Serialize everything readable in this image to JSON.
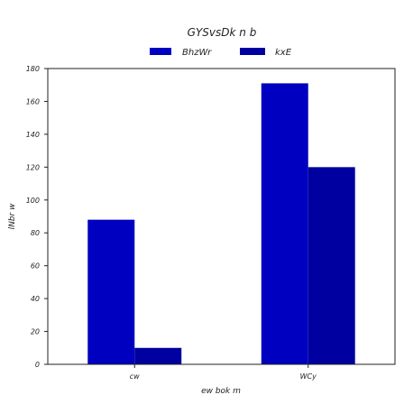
{
  "chart_data": {
    "type": "bar",
    "title": "GYSvsDk n b",
    "xlabel": "ew bok m",
    "ylabel": "lNbr w",
    "categories": [
      "cw",
      "WCy"
    ],
    "series": [
      {
        "name": "BhzWr",
        "values": [
          88,
          171
        ],
        "color": "#0000c0"
      },
      {
        "name": "kxE",
        "values": [
          10,
          120
        ],
        "color": "#0000a0"
      }
    ],
    "ylim": [
      0,
      180
    ],
    "yticks": [
      0,
      20,
      40,
      60,
      80,
      100,
      120,
      140,
      160,
      180
    ],
    "grid": false,
    "legend_position": "top-center"
  }
}
